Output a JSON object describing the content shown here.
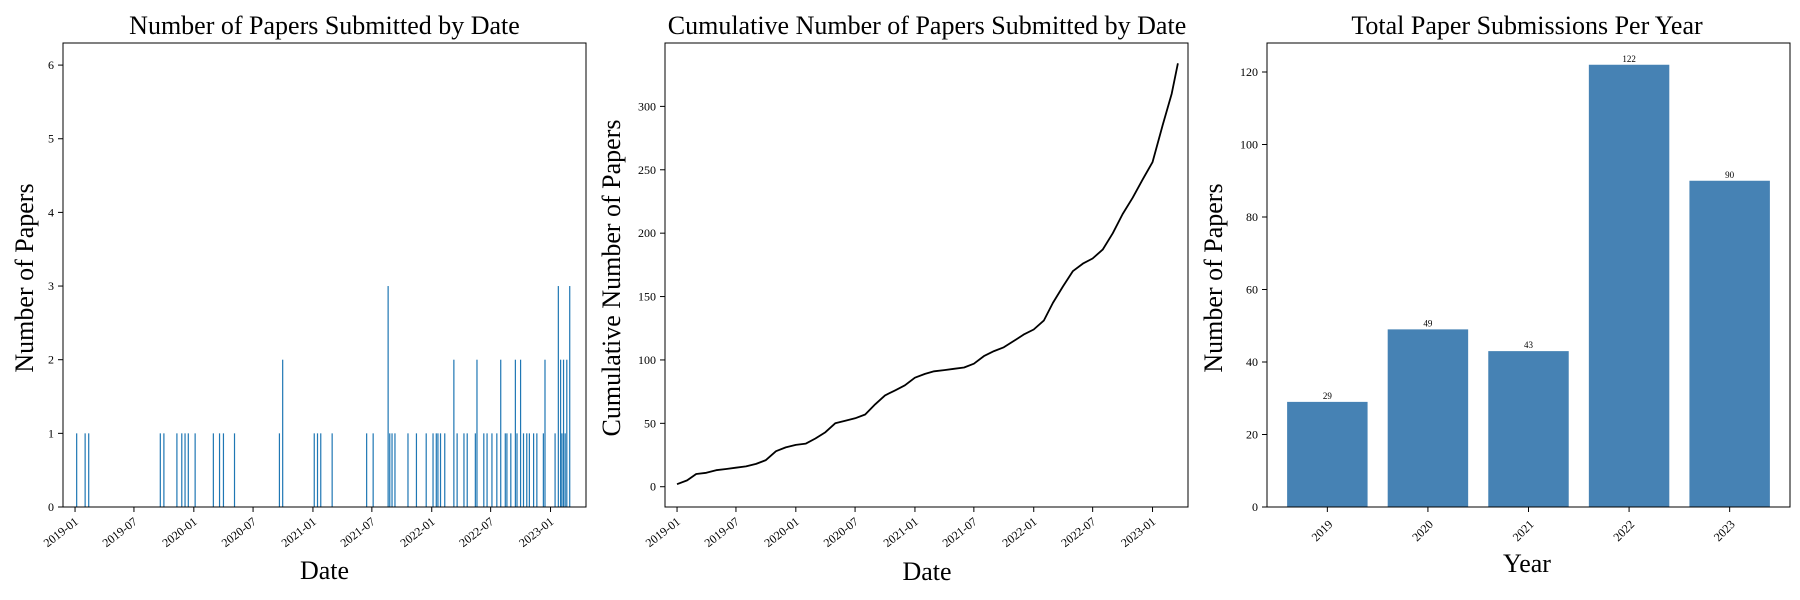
{
  "chart_data": [
    {
      "type": "bar",
      "title": "Number of Papers Submitted by Date",
      "xlabel": "Date",
      "ylabel": "Number of Papers",
      "ylim": [
        0,
        6.3
      ],
      "xlim": [
        "2018-11-25",
        "2023-04-20"
      ],
      "yticks": [
        0,
        1,
        2,
        3,
        4,
        5,
        6
      ],
      "xticks": [
        "2019-01",
        "2019-07",
        "2020-01",
        "2020-07",
        "2021-01",
        "2021-07",
        "2022-01",
        "2022-07",
        "2023-01"
      ],
      "color": "#1f77b4",
      "x": [
        "2019-01-06",
        "2019-02-01",
        "2019-02-12",
        "2019-09-20",
        "2019-10-01",
        "2019-11-10",
        "2019-11-25",
        "2019-12-05",
        "2019-12-15",
        "2020-01-05",
        "2020-03-01",
        "2020-03-20",
        "2020-04-01",
        "2020-05-05",
        "2020-09-20",
        "2020-09-30",
        "2021-01-05",
        "2021-01-15",
        "2021-01-25",
        "2021-03-01",
        "2021-06-15",
        "2021-07-05",
        "2021-08-20",
        "2021-08-25",
        "2021-09-01",
        "2021-09-10",
        "2021-10-20",
        "2021-11-15",
        "2021-12-15",
        "2022-01-05",
        "2022-01-15",
        "2022-01-20",
        "2022-01-28",
        "2022-02-10",
        "2022-03-10",
        "2022-03-20",
        "2022-04-10",
        "2022-04-20",
        "2022-05-15",
        "2022-05-20",
        "2022-06-10",
        "2022-06-20",
        "2022-07-05",
        "2022-07-20",
        "2022-08-01",
        "2022-08-15",
        "2022-08-20",
        "2022-09-01",
        "2022-09-15",
        "2022-09-20",
        "2022-10-01",
        "2022-10-10",
        "2022-10-20",
        "2022-10-28",
        "2022-11-10",
        "2022-11-20",
        "2022-12-10",
        "2022-12-15",
        "2023-01-15",
        "2023-01-25",
        "2023-02-01",
        "2023-02-05",
        "2023-02-10",
        "2023-02-15",
        "2023-02-20",
        "2023-03-01"
      ],
      "values": [
        1,
        1,
        1,
        1,
        1,
        1,
        1,
        1,
        1,
        1,
        1,
        1,
        1,
        1,
        1,
        2,
        1,
        1,
        1,
        1,
        1,
        1,
        3,
        1,
        1,
        1,
        1,
        1,
        1,
        1,
        1,
        1,
        1,
        1,
        2,
        1,
        1,
        1,
        1,
        2,
        1,
        1,
        1,
        1,
        2,
        1,
        1,
        1,
        2,
        1,
        2,
        1,
        1,
        1,
        1,
        1,
        1,
        2,
        1,
        3,
        2,
        1,
        2,
        1,
        2,
        3
      ]
    },
    {
      "type": "line",
      "title": "Cumulative Number of Papers Submitted by Date",
      "xlabel": "Date",
      "ylabel": "Cumulative Number of Papers",
      "ylim": [
        -16,
        350
      ],
      "xlim": [
        "2018-11-25",
        "2023-04-20"
      ],
      "yticks": [
        0,
        50,
        100,
        150,
        200,
        250,
        300
      ],
      "xticks": [
        "2019-01",
        "2019-07",
        "2020-01",
        "2020-07",
        "2021-01",
        "2021-07",
        "2022-01",
        "2022-07",
        "2023-01"
      ],
      "color": "#000000",
      "x": [
        "2019-01-01",
        "2019-02-01",
        "2019-03-01",
        "2019-04-01",
        "2019-05-01",
        "2019-06-01",
        "2019-07-01",
        "2019-08-01",
        "2019-09-01",
        "2019-10-01",
        "2019-11-01",
        "2019-12-01",
        "2020-01-01",
        "2020-02-01",
        "2020-03-01",
        "2020-04-01",
        "2020-05-01",
        "2020-06-01",
        "2020-07-01",
        "2020-08-01",
        "2020-09-01",
        "2020-10-01",
        "2020-11-01",
        "2020-12-01",
        "2021-01-01",
        "2021-02-01",
        "2021-03-01",
        "2021-04-01",
        "2021-05-01",
        "2021-06-01",
        "2021-07-01",
        "2021-08-01",
        "2021-09-01",
        "2021-10-01",
        "2021-11-01",
        "2021-12-01",
        "2022-01-01",
        "2022-02-01",
        "2022-03-01",
        "2022-04-01",
        "2022-05-01",
        "2022-06-01",
        "2022-07-01",
        "2022-08-01",
        "2022-09-01",
        "2022-10-01",
        "2022-11-01",
        "2022-12-01",
        "2023-01-01",
        "2023-02-01",
        "2023-03-01",
        "2023-03-20"
      ],
      "values": [
        2,
        5,
        10,
        11,
        13,
        14,
        15,
        16,
        18,
        21,
        28,
        31,
        33,
        34,
        38,
        43,
        50,
        52,
        54,
        57,
        65,
        72,
        76,
        80,
        86,
        89,
        91,
        92,
        93,
        94,
        97,
        103,
        107,
        110,
        115,
        120,
        124,
        131,
        145,
        158,
        170,
        176,
        180,
        187,
        200,
        215,
        228,
        242,
        256,
        285,
        310,
        334
      ]
    },
    {
      "type": "bar",
      "title": "Total Paper Submissions Per Year",
      "xlabel": "Year",
      "ylabel": "Number of Papers",
      "ylim": [
        0,
        128
      ],
      "yticks": [
        0,
        20,
        40,
        60,
        80,
        100,
        120
      ],
      "categories": [
        "2019",
        "2020",
        "2021",
        "2022",
        "2023"
      ],
      "values": [
        29,
        49,
        43,
        122,
        90
      ],
      "color": "#4682b4"
    }
  ]
}
